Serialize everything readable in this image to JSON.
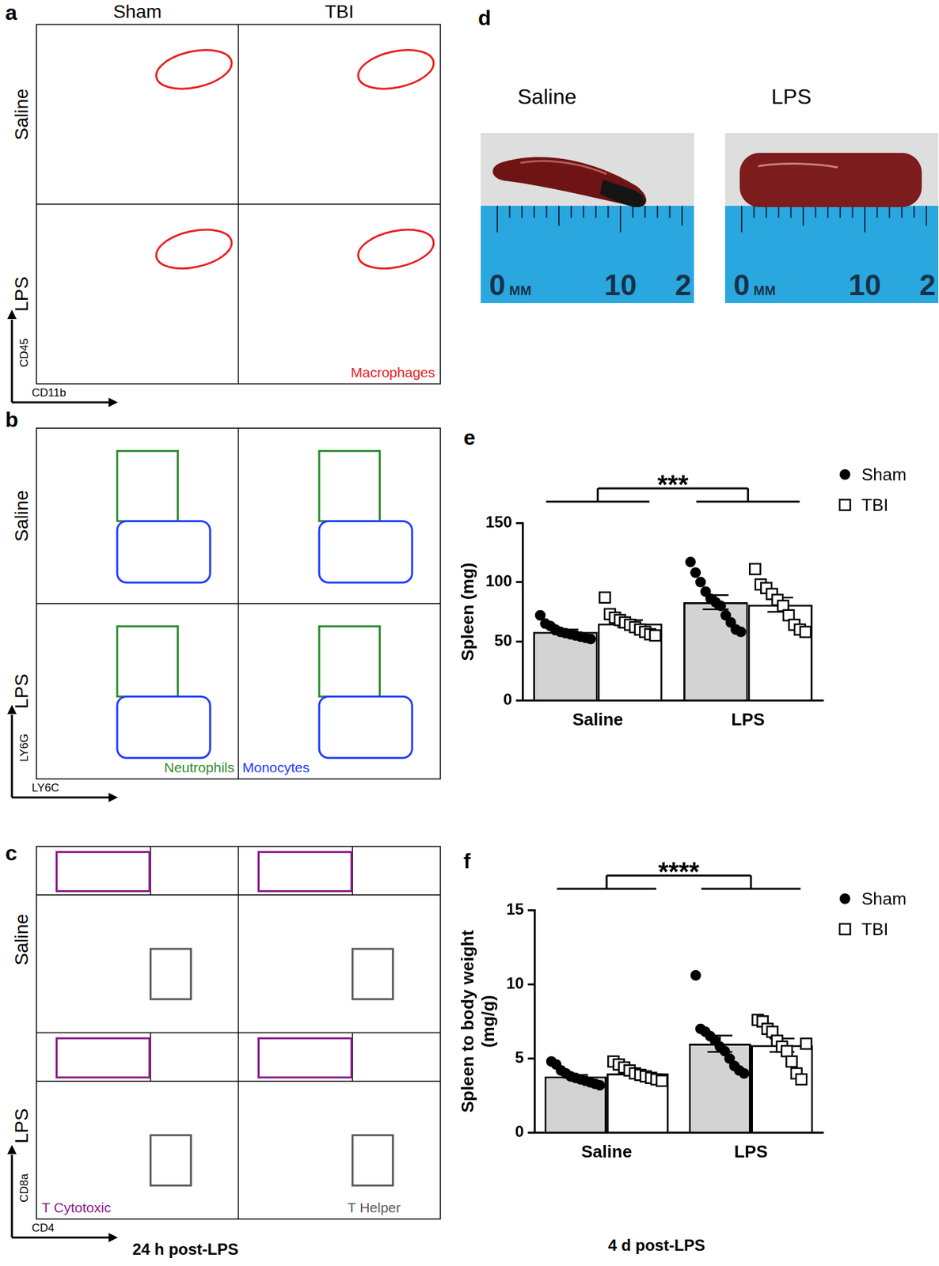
{
  "chart_data": [
    {
      "type": "bar",
      "panel": "e",
      "y_label": "Spleen (mg)",
      "categories": [
        "Saline",
        "LPS"
      ],
      "series": [
        {
          "name": "Sham",
          "color": "#d3d3d3",
          "marker": "circle",
          "values": [
            58,
            83
          ],
          "errors": [
            2,
            6
          ],
          "points": [
            [
              72,
              65,
              63,
              60,
              58,
              57,
              56,
              55,
              54,
              53,
              52
            ],
            [
              117,
              108,
              100,
              92,
              86,
              83,
              80,
              72,
              66,
              60,
              58
            ]
          ]
        },
        {
          "name": "TBI",
          "color": "#ffffff",
          "marker": "square",
          "values": [
            65,
            81
          ],
          "errors": [
            3,
            6
          ],
          "points": [
            [
              87,
              73,
              70,
              68,
              66,
              64,
              62,
              60,
              58,
              56,
              55
            ],
            [
              111,
              98,
              95,
              90,
              85,
              80,
              72,
              64,
              60,
              58
            ]
          ]
        }
      ],
      "ylim": [
        0,
        150
      ],
      "yticks": [
        0,
        50,
        100,
        150
      ],
      "grid": false,
      "legend": "right",
      "annotations": [
        {
          "text": "***",
          "between": [
            "Saline",
            "LPS"
          ]
        }
      ]
    },
    {
      "type": "bar",
      "panel": "f",
      "y_label": [
        "Spleen to body weight",
        "(mg/g)"
      ],
      "categories": [
        "Saline",
        "LPS"
      ],
      "series": [
        {
          "name": "Sham",
          "color": "#d3d3d3",
          "marker": "circle",
          "values": [
            3.8,
            6.0
          ],
          "errors": [
            0.1,
            0.55
          ],
          "points": [
            [
              4.8,
              4.6,
              4.2,
              4.0,
              3.8,
              3.7,
              3.6,
              3.5,
              3.4,
              3.3,
              3.2
            ],
            [
              10.6,
              7.0,
              6.8,
              6.5,
              6.2,
              5.8,
              5.5,
              5.0,
              4.5,
              4.2,
              4.0
            ]
          ]
        },
        {
          "name": "TBI",
          "color": "#ffffff",
          "marker": "square",
          "values": [
            4.0,
            5.9
          ],
          "errors": [
            0.1,
            0.45
          ],
          "points": [
            [
              4.8,
              4.6,
              4.4,
              4.2,
              4.0,
              3.9,
              3.8,
              3.7,
              3.6,
              3.5
            ],
            [
              7.6,
              7.5,
              7.0,
              6.8,
              6.2,
              5.8,
              5.5,
              4.8,
              4.0,
              3.6,
              6.0
            ]
          ]
        }
      ],
      "ylim": [
        0,
        15
      ],
      "yticks": [
        0,
        5,
        10,
        15
      ],
      "grid": false,
      "legend": "right",
      "annotations": [
        {
          "text": "****",
          "between": [
            "Saline",
            "LPS"
          ]
        }
      ],
      "caption": "4 d post-LPS"
    }
  ],
  "flow_panels": [
    {
      "panel": "a",
      "columns": [
        "Sham",
        "TBI"
      ],
      "rows": [
        "Saline",
        "LPS"
      ],
      "x_label": "CD11b",
      "y_label": "CD45",
      "gates": [
        {
          "label": "Macrophages",
          "color": "#e8201f"
        }
      ]
    },
    {
      "panel": "b",
      "rows": [
        "Saline",
        "LPS"
      ],
      "x_label": "LY6C",
      "y_label": "LY6G",
      "gates": [
        {
          "label": "Neutrophils",
          "color": "#2e8b2e"
        },
        {
          "label": "Monocytes",
          "color": "#1f3cff"
        }
      ]
    },
    {
      "panel": "c",
      "rows": [
        "Saline",
        "LPS"
      ],
      "x_label": "CD4",
      "y_label": "CD8a",
      "gates": [
        {
          "label": "T Cytotoxic",
          "color": "#8b1a8b"
        },
        {
          "label": "T Helper",
          "color": "#595959"
        }
      ],
      "caption": "24 h post-LPS"
    }
  ],
  "photo_panel": {
    "panel": "d",
    "images": [
      "Saline",
      "LPS"
    ],
    "ruler_labels": [
      "0",
      "MM",
      "10",
      "2"
    ]
  }
}
